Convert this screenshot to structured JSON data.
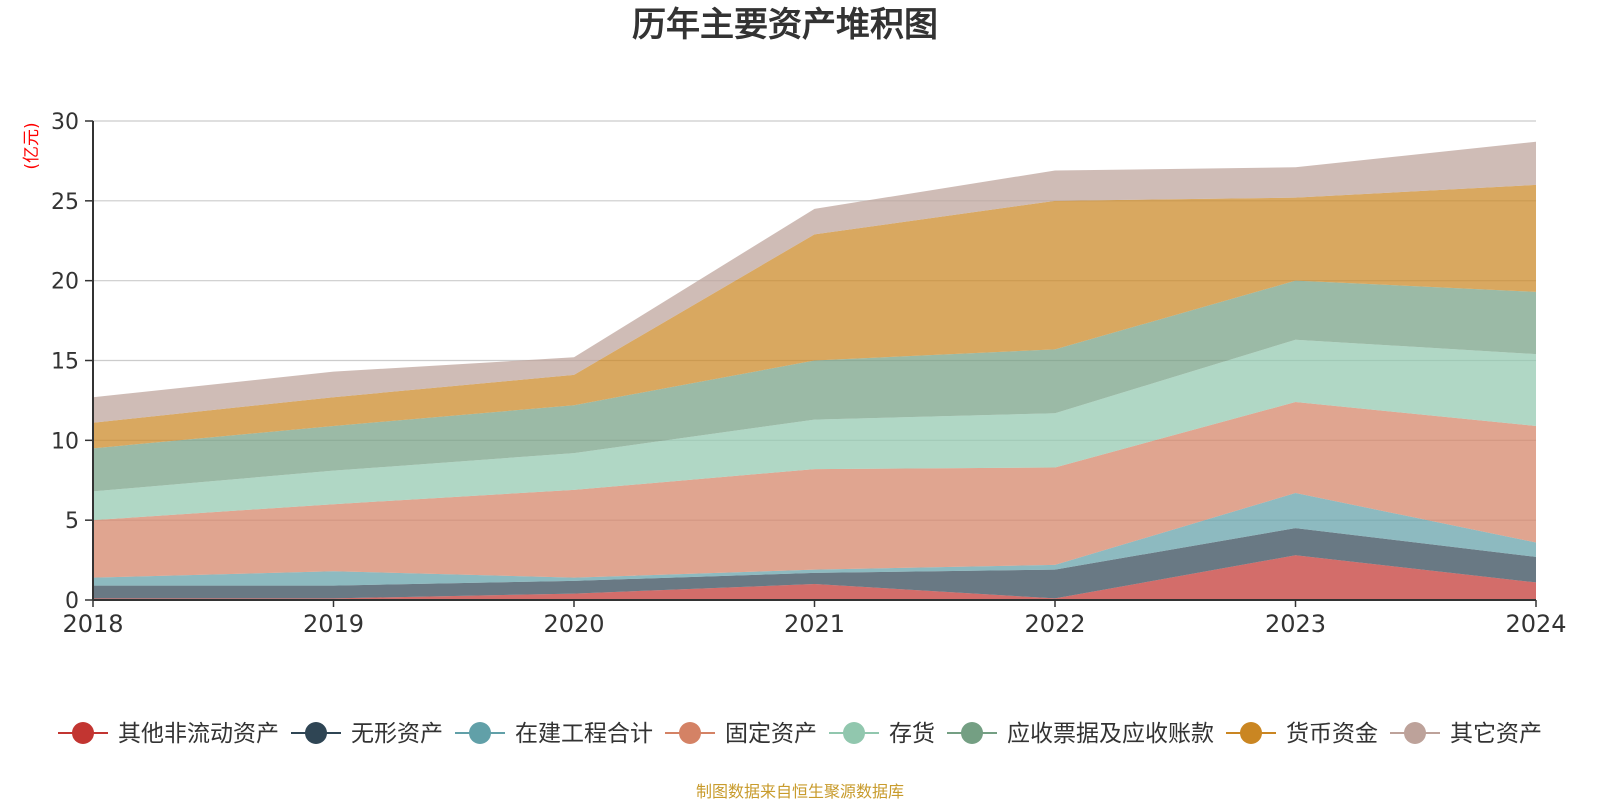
{
  "page": {
    "source_note": "制图数据来自恒生聚源数据库"
  },
  "colors": {
    "title": "#333333",
    "axis_text": "#333333",
    "ylabel": "#ff0000",
    "grid": "#cccccc",
    "source": "#c89b2c"
  },
  "chart_data": {
    "type": "area",
    "stacked": true,
    "title": "历年主要资产堆积图",
    "ylabel": "(亿元)",
    "xlabel": "",
    "x": [
      "2018",
      "2019",
      "2020",
      "2021",
      "2022",
      "2023",
      "2024"
    ],
    "ylim": [
      0,
      30
    ],
    "yticks": [
      0,
      5,
      10,
      15,
      20,
      25,
      30
    ],
    "grid": true,
    "legend_position": "bottom",
    "series": [
      {
        "name": "其他非流动资产",
        "color": "#c23531",
        "values": [
          0.1,
          0.1,
          0.4,
          1.0,
          0.1,
          2.8,
          1.1
        ]
      },
      {
        "name": "无形资产",
        "color": "#2f4554",
        "values": [
          0.8,
          0.8,
          0.8,
          0.7,
          1.8,
          1.7,
          1.6
        ]
      },
      {
        "name": "在建工程合计",
        "color": "#61a0a8",
        "values": [
          0.5,
          0.9,
          0.2,
          0.2,
          0.3,
          2.2,
          0.9
        ]
      },
      {
        "name": "固定资产",
        "color": "#d48265",
        "values": [
          3.6,
          4.2,
          5.5,
          6.3,
          6.1,
          5.7,
          7.3
        ]
      },
      {
        "name": "存货",
        "color": "#91c7ae",
        "values": [
          1.8,
          2.1,
          2.3,
          3.1,
          3.4,
          3.9,
          4.5
        ]
      },
      {
        "name": "应收票据及应收账款",
        "color": "#749f83",
        "values": [
          2.7,
          2.8,
          3.0,
          3.7,
          4.0,
          3.7,
          3.9
        ]
      },
      {
        "name": "货币资金",
        "color": "#ca8622",
        "values": [
          1.6,
          1.8,
          1.9,
          7.9,
          9.3,
          5.2,
          6.7
        ]
      },
      {
        "name": "其它资产",
        "color": "#bda29a",
        "values": [
          1.6,
          1.6,
          1.1,
          1.6,
          1.9,
          1.9,
          2.7
        ]
      }
    ]
  }
}
